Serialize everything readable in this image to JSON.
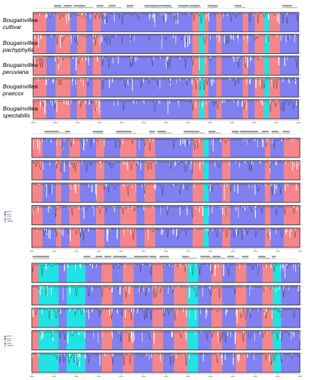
{
  "species": [
    {
      "line1": "Bougainvillea",
      "line2": "cultivar"
    },
    {
      "line1": "Bougainvillea",
      "line2": "pachyphylla"
    },
    {
      "line1": "Bougainvillea",
      "line2": "peruviana"
    },
    {
      "line1": "Bougainvillea",
      "line2": "praecox"
    },
    {
      "line1": "Bougainvillea",
      "line2": "spectabilis"
    }
  ],
  "legend": [
    {
      "label": "gene",
      "color": "#7f7ff2"
    },
    {
      "label": "exon",
      "color": "#5d9fe6"
    },
    {
      "label": "UTR",
      "color": "#73e6e6"
    },
    {
      "label": "CNS",
      "color": "#f07f80"
    },
    {
      "label": "mRNA",
      "color": "#c0c0c0"
    }
  ],
  "colors": {
    "gene": "#8080f0",
    "cns": "#f4868a",
    "utr": "#21e3e3",
    "panel_border": "#1a1a1a"
  }
}
